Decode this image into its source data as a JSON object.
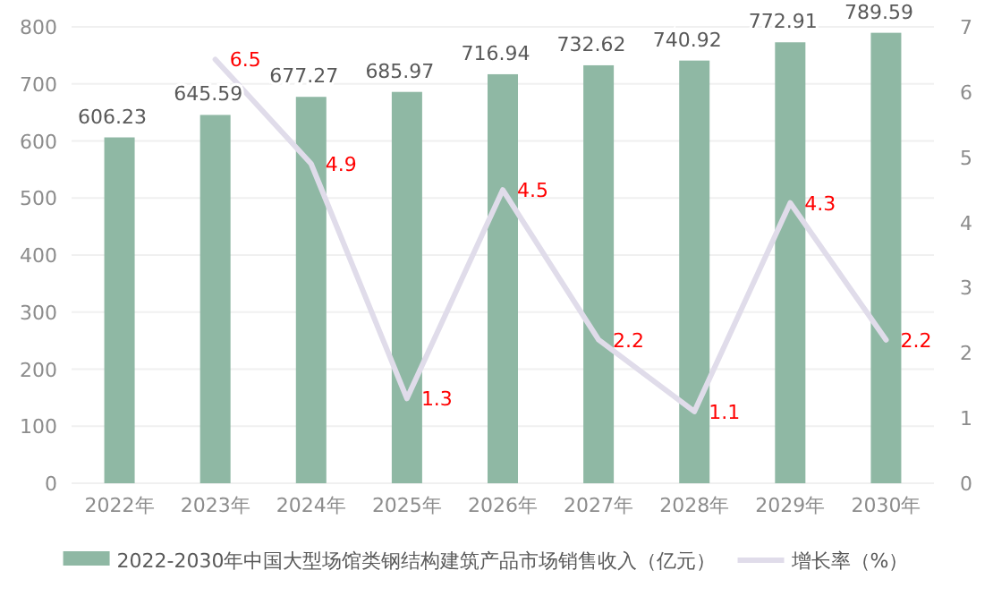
{
  "chart_data": {
    "type": "bar",
    "categories": [
      "2022年",
      "2023年",
      "2024年",
      "2025年",
      "2026年",
      "2027年",
      "2028年",
      "2029年",
      "2030年"
    ],
    "series": [
      {
        "name": "2022-2030年中国大型场馆类钢结构建筑产品市场销售收入（亿元）",
        "color": "#8fb8a4",
        "values": [
          606.23,
          645.59,
          677.27,
          685.97,
          716.94,
          732.62,
          740.92,
          772.91,
          789.59
        ]
      },
      {
        "name": "增长率（%）",
        "type": "line",
        "axis": "y2",
        "color": "#e0dcea",
        "values": [
          null,
          6.5,
          4.9,
          1.3,
          4.5,
          2.2,
          1.1,
          4.3,
          2.2
        ]
      }
    ],
    "ylim": [
      0,
      800
    ],
    "yticks": [
      0,
      100,
      200,
      300,
      400,
      500,
      600,
      700,
      800
    ],
    "y2lim": [
      0,
      7
    ],
    "y2ticks": [
      0,
      1,
      2,
      3,
      4,
      5,
      6,
      7
    ],
    "grid": "y",
    "legend": "bottom",
    "data_labels": true,
    "marker": "none"
  }
}
